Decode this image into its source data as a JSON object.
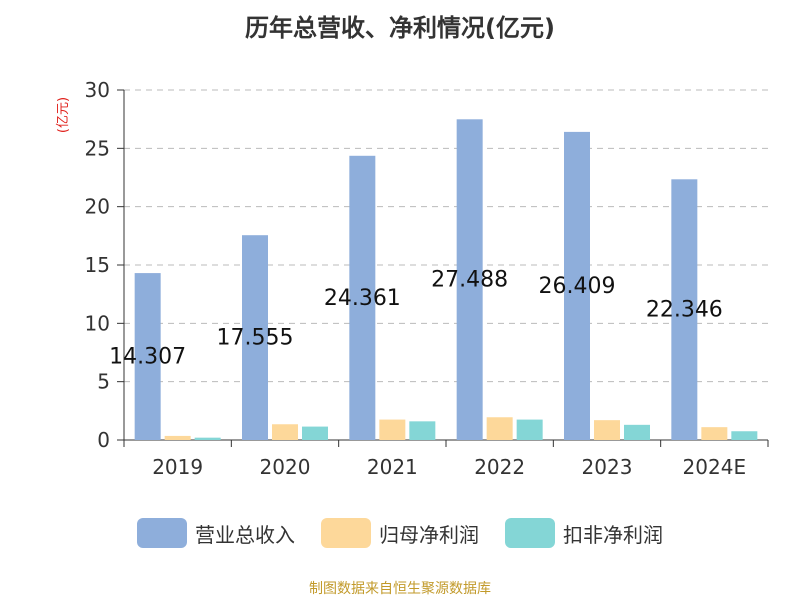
{
  "chart_data": {
    "type": "bar",
    "title": "历年总营收、净利情况(亿元)",
    "ylabel": "(亿元)",
    "xlabel": "",
    "categories": [
      "2019",
      "2020",
      "2021",
      "2022",
      "2023",
      "2024E"
    ],
    "ylim": [
      0,
      30
    ],
    "yticks": [
      0,
      5,
      10,
      15,
      20,
      25,
      30
    ],
    "grid": true,
    "legend_position": "bottom",
    "series": [
      {
        "name": "营业总收入",
        "color": "#8eaedb",
        "values": [
          14.307,
          17.555,
          24.361,
          27.488,
          26.409,
          22.346
        ],
        "data_labels": [
          "14.307",
          "17.555",
          "24.361",
          "27.488",
          "26.409",
          "22.346"
        ]
      },
      {
        "name": "归母净利润",
        "color": "#fdd89a",
        "values": [
          0.35,
          1.35,
          1.75,
          1.95,
          1.7,
          1.1
        ]
      },
      {
        "name": "扣非净利润",
        "color": "#84d6d6",
        "values": [
          0.2,
          1.15,
          1.6,
          1.75,
          1.3,
          0.75
        ]
      }
    ]
  },
  "footer": {
    "source": "制图数据来自恒生聚源数据库"
  }
}
